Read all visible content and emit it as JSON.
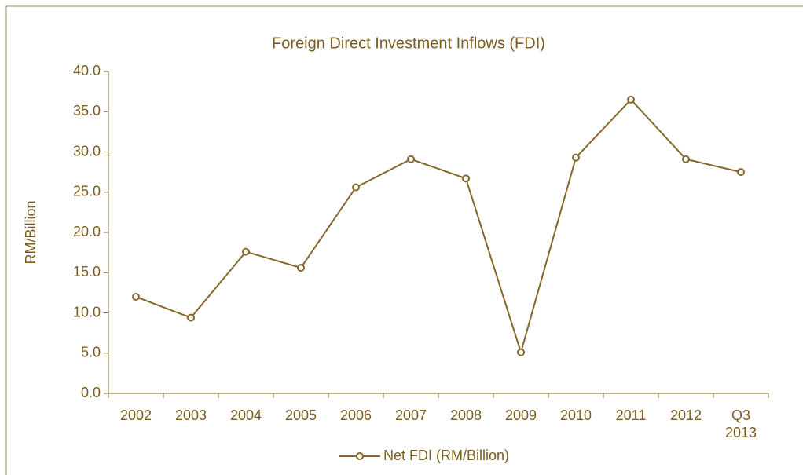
{
  "chart_data": {
    "type": "line",
    "title": "Foreign Direct Investment Inflows (FDI)",
    "y_label": "RM/Billion",
    "categories": [
      "2002",
      "2003",
      "2004",
      "2005",
      "2006",
      "2007",
      "2008",
      "2009",
      "2010",
      "2011",
      "2012",
      "Q3 2013"
    ],
    "series": [
      {
        "name": "Net FDI (RM/Billion)",
        "color": "#85672a",
        "values": [
          12.0,
          9.4,
          17.6,
          15.6,
          25.6,
          29.1,
          26.7,
          5.1,
          29.3,
          36.5,
          29.1,
          27.5
        ]
      }
    ],
    "ylim": [
      0,
      40
    ],
    "yticks": [
      {
        "value": 0,
        "label": "0.0"
      },
      {
        "value": 5,
        "label": "5.0"
      },
      {
        "value": 10,
        "label": "10.0"
      },
      {
        "value": 15,
        "label": "15.0"
      },
      {
        "value": 20,
        "label": "20.0"
      },
      {
        "value": 25,
        "label": "25.0"
      },
      {
        "value": 30,
        "label": "30.0"
      },
      {
        "value": 35,
        "label": "35.0"
      },
      {
        "value": 40,
        "label": "40.0"
      }
    ],
    "legend": "bottom"
  }
}
